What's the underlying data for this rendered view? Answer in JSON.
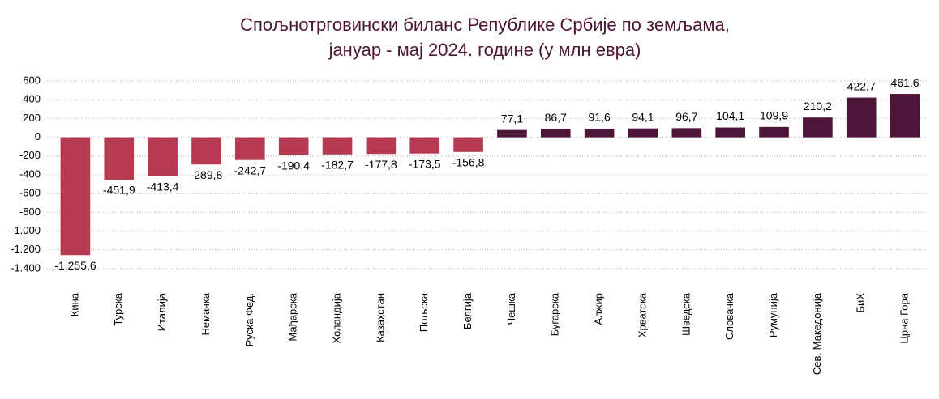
{
  "chart_data": {
    "type": "bar",
    "title": [
      "Спољнотрговински биланс Републике Србије по земљама,",
      "јануар - мај 2024. године (у млн евра)"
    ],
    "categories": [
      "Кина",
      "Турска",
      "Италија",
      "Немачка",
      "Руска Фед.",
      "Мађарска",
      "Холандија",
      "Казахстан",
      "Пољска",
      "Белгија",
      "Чешка",
      "Бугарска",
      "Алжир",
      "Хрватска",
      "Шведска",
      "Словачка",
      "Румунија",
      "Сев. Македонија",
      "БиХ",
      "Црна Гора"
    ],
    "values": [
      -1255.6,
      -451.9,
      -413.4,
      -289.8,
      -242.7,
      -190.4,
      -182.7,
      -177.8,
      -173.5,
      -156.8,
      77.1,
      86.7,
      91.6,
      94.1,
      96.7,
      104.1,
      109.9,
      210.2,
      422.7,
      461.6
    ],
    "value_labels": [
      "-1.255,6",
      "-451,9",
      "-413,4",
      "-289,8",
      "-242,7",
      "-190,4",
      "-182,7",
      "-177,8",
      "-173,5",
      "-156,8",
      "77,1",
      "86,7",
      "91,6",
      "94,1",
      "96,7",
      "104,1",
      "109,9",
      "210,2",
      "422,7",
      "461,6"
    ],
    "negative_color": "#b73a53",
    "positive_color": "#4d1537",
    "ylim": [
      -1400,
      600
    ],
    "yticks": [
      {
        "value": -1400,
        "label": "-1.400"
      },
      {
        "value": -1200,
        "label": "-1.200"
      },
      {
        "value": -1000,
        "label": "-1.000"
      },
      -800,
      -600,
      -400,
      -200,
      0,
      200,
      400,
      600
    ],
    "grid": true
  }
}
